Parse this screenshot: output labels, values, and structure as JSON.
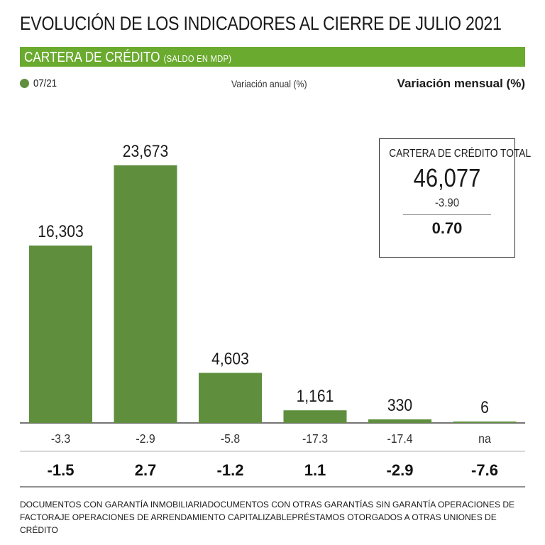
{
  "header": {
    "title": "EVOLUCIÓN DE LOS INDICADORES AL CIERRE DE JULIO 2021",
    "section_title": "CARTERA DE CRÉDITO",
    "section_subtitle": "(SALDO  EN MDP)"
  },
  "legend": {
    "period": "07/21",
    "annual_label": "Variación anual (%)",
    "monthly_label": "Variación mensual (%)"
  },
  "colors": {
    "bar": "#5f8f3d",
    "header_band": "#6aaa2e"
  },
  "total": {
    "title": "CARTERA DE CRÉDITO TOTAL",
    "value": "46,077",
    "annual": "-3.90",
    "monthly": "0.70"
  },
  "chart_data": {
    "type": "bar",
    "title": "CARTERA DE CRÉDITO (SALDO EN MDP)",
    "categories": [
      "Documentos con garantía inmobiliaria",
      "Documentos con otras garantías",
      "Sin garantía",
      "Operaciones de factoraje",
      "Operaciones de arrendamiento capitalizable",
      "Préstamos otorgados a otras uniones de crédito"
    ],
    "values": [
      16303,
      23673,
      4603,
      1161,
      330,
      6
    ],
    "value_labels": [
      "16,303",
      "23,673",
      "4,603",
      "1,161",
      "330",
      "6"
    ],
    "annual_variation": [
      "-3.3",
      "-2.9",
      "-5.8",
      "-17.3",
      "-17.4",
      "na"
    ],
    "monthly_variation": [
      "-1.5",
      "2.7",
      "-1.2",
      "1.1",
      "-2.9",
      "-7.6"
    ],
    "ylim": [
      0,
      23673
    ],
    "xlabel": "",
    "ylabel": ""
  },
  "footnote": "Documentos con garantía inmobiliariaDocumentos con otras garantías Sin garantía Operaciones de factoraje Operaciones de arrendamiento capitalizablePréstamos otorgados a otras uniones de crédito"
}
